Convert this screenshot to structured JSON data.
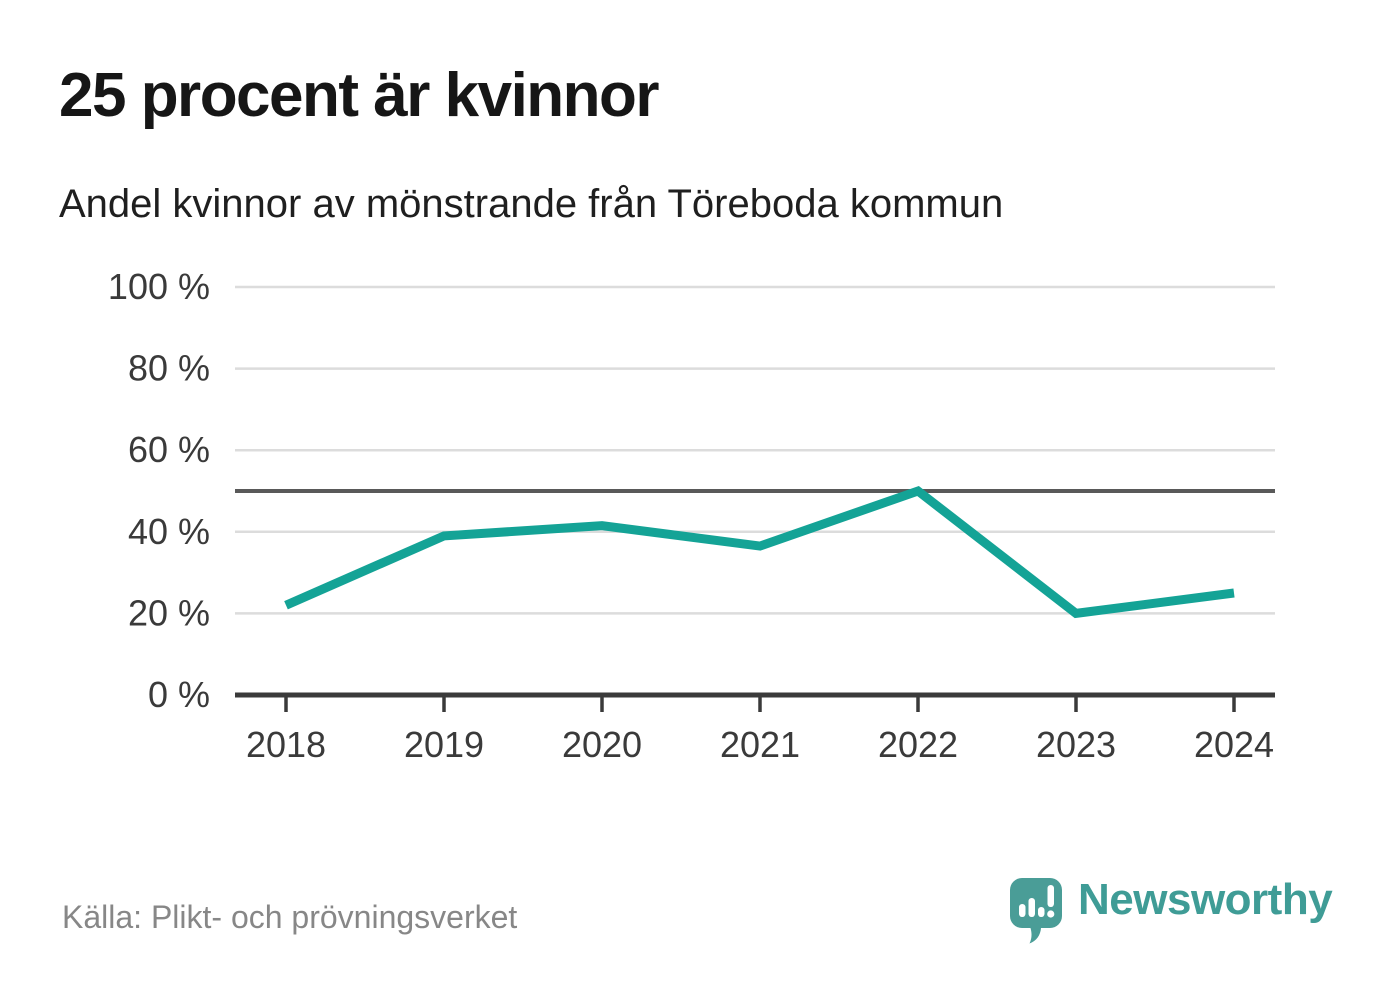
{
  "header": {
    "title": "25 procent är kvinnor",
    "subtitle": "Andel kvinnor av mönstrande från Töreboda kommun"
  },
  "chart_data": {
    "type": "line",
    "title": "25 procent är kvinnor",
    "subtitle": "Andel kvinnor av mönstrande från Töreboda kommun",
    "categories": [
      "2018",
      "2019",
      "2020",
      "2021",
      "2022",
      "2023",
      "2024"
    ],
    "series": [
      {
        "name": "Andel kvinnor av mönstrande",
        "values": [
          22,
          39,
          41.5,
          36.5,
          50,
          20,
          25
        ]
      }
    ],
    "unit": "%",
    "ylim": [
      0,
      100
    ],
    "yticks": [
      0,
      20,
      40,
      60,
      80,
      100
    ],
    "ytick_labels": [
      "0 %",
      "20 %",
      "40 %",
      "60 %",
      "80 %",
      "100 %"
    ],
    "reference_line": 50,
    "grid": true,
    "legend": false,
    "colors": {
      "line": "#14a396",
      "grid": "#dcdcdc",
      "reference": "#595959",
      "axis": "#3a3a3a",
      "tick_text": "#3a3a3a"
    }
  },
  "footer": {
    "source": "Källa: Plikt- och prövningsverket",
    "brand": "Newsworthy",
    "brand_color": "#3f9c96",
    "logo_color": "#4a9d97"
  }
}
